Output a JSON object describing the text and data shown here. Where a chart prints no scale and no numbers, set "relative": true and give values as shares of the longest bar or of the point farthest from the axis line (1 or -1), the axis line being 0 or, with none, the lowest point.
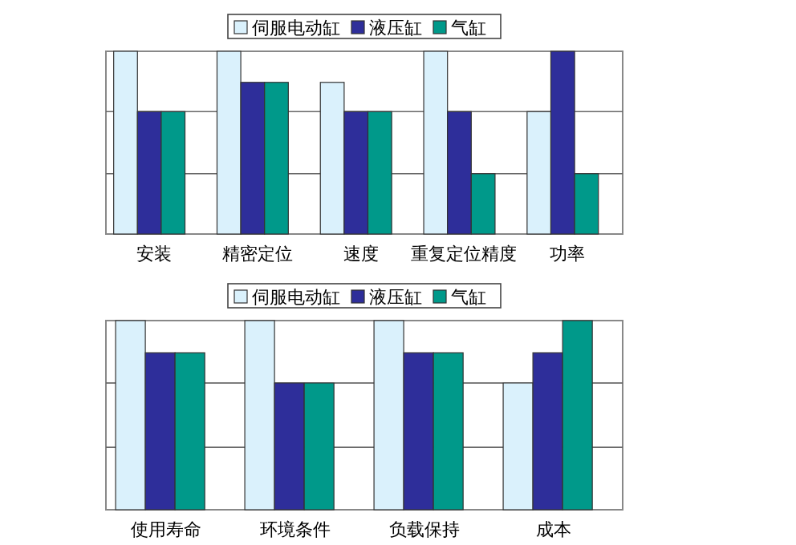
{
  "chart_data": [
    {
      "type": "bar",
      "relative": true,
      "categories": [
        "安装",
        "精密定位",
        "速度",
        "重复定位精度",
        "功率"
      ],
      "series": [
        {
          "name": "伺服电动缸",
          "color": "#daf1fc",
          "values": [
            1,
            1,
            0.83,
            1,
            0.67
          ]
        },
        {
          "name": "液压缸",
          "color": "#2e2e9a",
          "values": [
            0.67,
            0.83,
            0.67,
            0.67,
            1
          ]
        },
        {
          "name": "气缸",
          "color": "#00998a",
          "values": [
            0.67,
            0.83,
            0.67,
            0.33,
            0.33
          ]
        }
      ],
      "ref_lines": [
        {
          "axis": "y",
          "value": 0.33,
          "color": "#666666"
        },
        {
          "axis": "y",
          "value": 0.67,
          "color": "#666666"
        }
      ],
      "legend": "top"
    },
    {
      "type": "bar",
      "relative": true,
      "categories": [
        "使用寿命",
        "环境条件",
        "负载保持",
        "成本"
      ],
      "series": [
        {
          "name": "伺服电动缸",
          "color": "#daf1fc",
          "values": [
            1,
            1,
            1,
            0.67
          ]
        },
        {
          "name": "液压缸",
          "color": "#2e2e9a",
          "values": [
            0.83,
            0.67,
            0.83,
            0.83
          ]
        },
        {
          "name": "气缸",
          "color": "#00998a",
          "values": [
            0.83,
            0.67,
            0.83,
            1
          ]
        }
      ],
      "ref_lines": [
        {
          "axis": "y",
          "value": 0.33,
          "color": "#666666"
        },
        {
          "axis": "y",
          "value": 0.67,
          "color": "#666666"
        }
      ],
      "legend": "top"
    }
  ]
}
